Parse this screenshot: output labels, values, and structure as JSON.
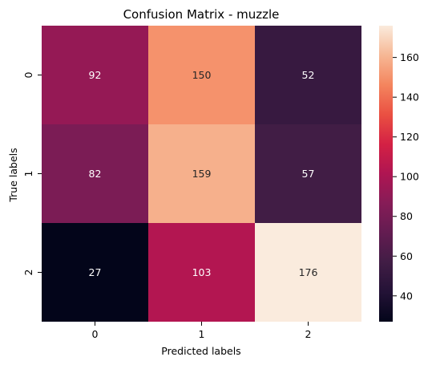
{
  "chart_data": {
    "type": "heatmap",
    "title": "Confusion Matrix - muzzle",
    "xlabel": "Predicted labels",
    "ylabel": "True labels",
    "x_categories": [
      "0",
      "1",
      "2"
    ],
    "y_categories": [
      "0",
      "1",
      "2"
    ],
    "values": [
      [
        92,
        150,
        52
      ],
      [
        82,
        159,
        57
      ],
      [
        27,
        103,
        176
      ]
    ],
    "colorbar": {
      "range": [
        27,
        176
      ],
      "ticks": [
        "40",
        "60",
        "80",
        "100",
        "120",
        "140",
        "160"
      ]
    },
    "colormap": "rocket"
  }
}
